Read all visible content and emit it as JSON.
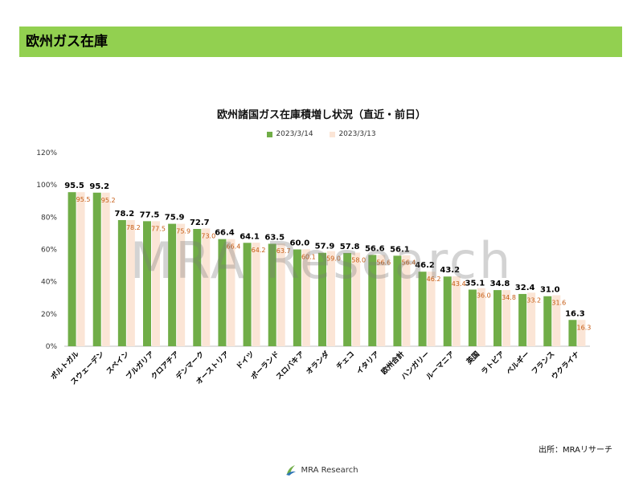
{
  "header": {
    "title": "欧州ガス在庫"
  },
  "chart_data": {
    "type": "bar",
    "title": "欧州諸国ガス在庫積増し状況（直近・前日）",
    "categories": [
      "ポルトガル",
      "スウェーデン",
      "スペイン",
      "ブルガリア",
      "クロアチア",
      "デンマーク",
      "オーストリア",
      "ドイツ",
      "ポーランド",
      "スロバキア",
      "オランダ",
      "チェコ",
      "イタリア",
      "欧州合計",
      "ハンガリー",
      "ルーマニア",
      "英国",
      "ラトビア",
      "ベルギー",
      "フランス",
      "ウクライナ"
    ],
    "series": [
      {
        "name": "2023/3/14",
        "color": "#70ad47",
        "values": [
          95.5,
          95.2,
          78.2,
          77.5,
          75.9,
          72.7,
          66.4,
          64.1,
          63.5,
          60.0,
          57.9,
          57.8,
          56.6,
          56.1,
          46.2,
          43.2,
          35.1,
          34.8,
          32.4,
          31.0,
          16.3
        ],
        "labels": [
          "95.5",
          "95.2",
          "78.2",
          "77.5",
          "75.9",
          "72.7",
          "66.4",
          "64.1",
          "63.5",
          "60.0",
          "57.9",
          "57.8",
          "56.6",
          "56.1",
          "46.2",
          "43.2",
          "35.1",
          "34.8",
          "32.4",
          "31.0",
          "16.3"
        ]
      },
      {
        "name": "2023/3/13",
        "color": "#fbe5d6",
        "values": [
          95.5,
          95.2,
          78.2,
          77.5,
          75.9,
          73.0,
          66.4,
          64.2,
          63.7,
          60.1,
          59.0,
          58.0,
          56.6,
          56.4,
          46.2,
          43.4,
          36.0,
          34.8,
          33.2,
          31.6,
          16.3
        ],
        "labels": [
          "95.5",
          "95.2",
          "78.2",
          "77.5",
          "75.9",
          "73.0",
          "66.4",
          "64.2",
          "63.7",
          "60.1",
          "59.0",
          "58.0",
          "56.6",
          "56.4",
          "46.2",
          "43.4",
          "36.0",
          "34.8",
          "33.2",
          "31.6",
          "16.3"
        ]
      }
    ],
    "ylim": [
      0,
      120
    ],
    "yticks": [
      "0%",
      "20%",
      "40%",
      "60%",
      "80%",
      "100%",
      "120%"
    ],
    "grid": false,
    "legend": "top"
  },
  "watermark": "MRA Research",
  "source": "出所：MRAリサーチ",
  "footer": {
    "logo_text": "MRA Research"
  }
}
